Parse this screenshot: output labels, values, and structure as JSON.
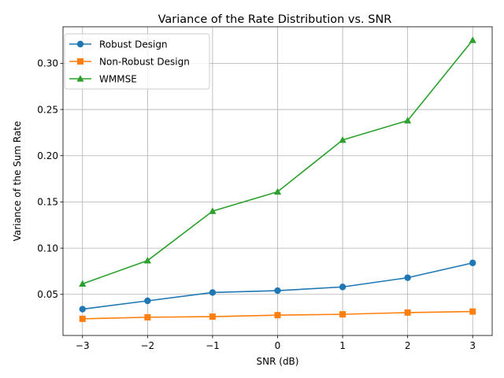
{
  "chart_data": {
    "type": "line",
    "title": "Variance of the Rate Distribution vs. SNR",
    "xlabel": "SNR (dB)",
    "ylabel": "Variance of the Sum Rate",
    "x": [
      -3,
      -2,
      -1,
      0,
      1,
      2,
      3
    ],
    "xlim": [
      -3.3,
      3.3
    ],
    "ylim": [
      0.0055,
      0.3395
    ],
    "xticks": [
      -3,
      -2,
      -1,
      0,
      1,
      2,
      3
    ],
    "xtick_labels": [
      "−3",
      "−2",
      "−1",
      "0",
      "1",
      "2",
      "3"
    ],
    "yticks": [
      0.05,
      0.1,
      0.15,
      0.2,
      0.25,
      0.3
    ],
    "ytick_labels": [
      "0.05",
      "0.10",
      "0.15",
      "0.20",
      "0.25",
      "0.30"
    ],
    "grid": true,
    "legend_position": "upper-left",
    "series": [
      {
        "name": "Robust Design",
        "color": "#1f77b4",
        "marker": "circle",
        "values": [
          0.034,
          0.043,
          0.052,
          0.054,
          0.058,
          0.068,
          0.084
        ]
      },
      {
        "name": "Non-Robust Design",
        "color": "#ff7f0e",
        "marker": "square",
        "values": [
          0.0235,
          0.0252,
          0.0259,
          0.0275,
          0.0284,
          0.0303,
          0.0314
        ]
      },
      {
        "name": "WMMSE",
        "color": "#2ca02c",
        "marker": "triangle",
        "values": [
          0.0614,
          0.0865,
          0.14,
          0.161,
          0.217,
          0.238,
          0.325
        ]
      }
    ]
  }
}
